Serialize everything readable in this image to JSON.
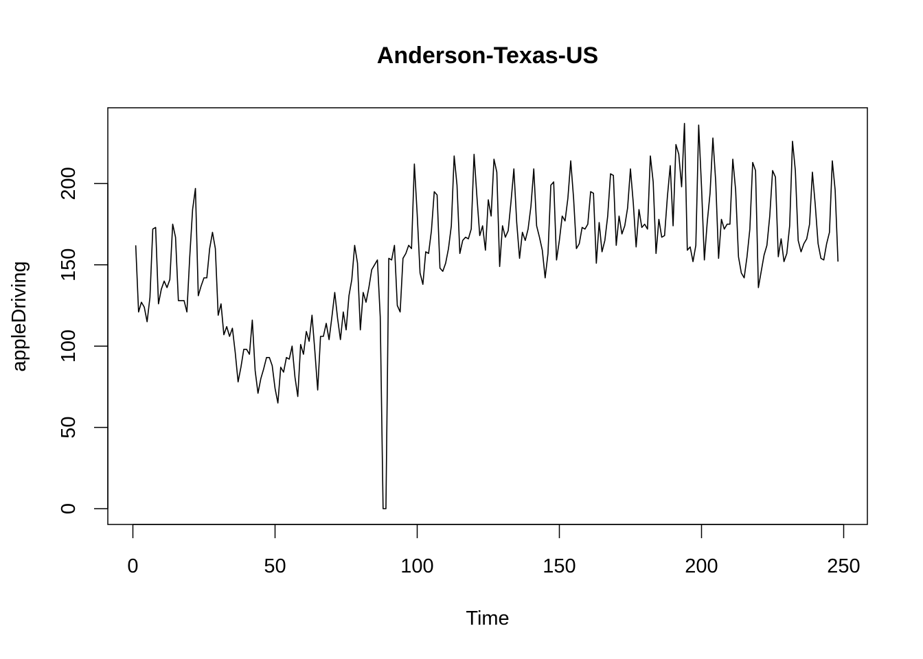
{
  "chart_data": {
    "type": "line",
    "title": "Anderson-Texas-US",
    "xlabel": "Time",
    "ylabel": "appleDriving",
    "xlim": [
      0,
      250
    ],
    "ylim": [
      0,
      240
    ],
    "x_ticks": [
      0,
      50,
      100,
      150,
      200,
      250
    ],
    "y_ticks": [
      0,
      50,
      100,
      150,
      200
    ],
    "x_tick_labels": [
      "0",
      "50",
      "100",
      "150",
      "200",
      "250"
    ],
    "y_tick_labels": [
      "0",
      "50",
      "100",
      "150",
      "200"
    ],
    "grid": false,
    "legend": "none",
    "line_color": "#000000",
    "series": [
      {
        "x_start": 1,
        "x_step": 1,
        "values": [
          162,
          121,
          127,
          124,
          115,
          130,
          172,
          173,
          126,
          135,
          140,
          136,
          141,
          175,
          167,
          128,
          128,
          128,
          121,
          155,
          184,
          197,
          131,
          137,
          142,
          142,
          160,
          170,
          160,
          119,
          126,
          107,
          112,
          106,
          111,
          96,
          78,
          87,
          98,
          98,
          95,
          116,
          85,
          71,
          80,
          86,
          93,
          93,
          88,
          74,
          65,
          87,
          84,
          93,
          92,
          100,
          81,
          69,
          101,
          95,
          109,
          103,
          119,
          97,
          73,
          106,
          106,
          114,
          104,
          118,
          133,
          117,
          104,
          121,
          110,
          131,
          141,
          162,
          151,
          110,
          133,
          127,
          136,
          147,
          150,
          153,
          118,
          0,
          0,
          154,
          153,
          162,
          125,
          121,
          154,
          157,
          162,
          160,
          212,
          181,
          145,
          138,
          158,
          157,
          171,
          195,
          193,
          148,
          146,
          151,
          160,
          174,
          217,
          199,
          157,
          165,
          167,
          166,
          172,
          218,
          192,
          168,
          174,
          159,
          190,
          180,
          215,
          207,
          149,
          174,
          167,
          171,
          189,
          209,
          176,
          154,
          170,
          165,
          172,
          186,
          209,
          174,
          167,
          159,
          142,
          157,
          199,
          201,
          153,
          165,
          180,
          177,
          191,
          214,
          191,
          160,
          163,
          173,
          172,
          175,
          195,
          194,
          151,
          176,
          158,
          165,
          180,
          206,
          205,
          162,
          180,
          169,
          174,
          185,
          209,
          188,
          161,
          184,
          173,
          175,
          172,
          217,
          201,
          157,
          178,
          167,
          168,
          192,
          211,
          174,
          224,
          218,
          198,
          237,
          159,
          161,
          152,
          162,
          236,
          198,
          153,
          176,
          194,
          228,
          201,
          154,
          178,
          172,
          175,
          175,
          215,
          196,
          155,
          145,
          142,
          155,
          172,
          213,
          208,
          136,
          146,
          156,
          162,
          180,
          208,
          204,
          155,
          166,
          152,
          157,
          174,
          226,
          208,
          165,
          158,
          163,
          166,
          175,
          207,
          187,
          163,
          154,
          153,
          163,
          170,
          214,
          196,
          152
        ]
      }
    ]
  }
}
